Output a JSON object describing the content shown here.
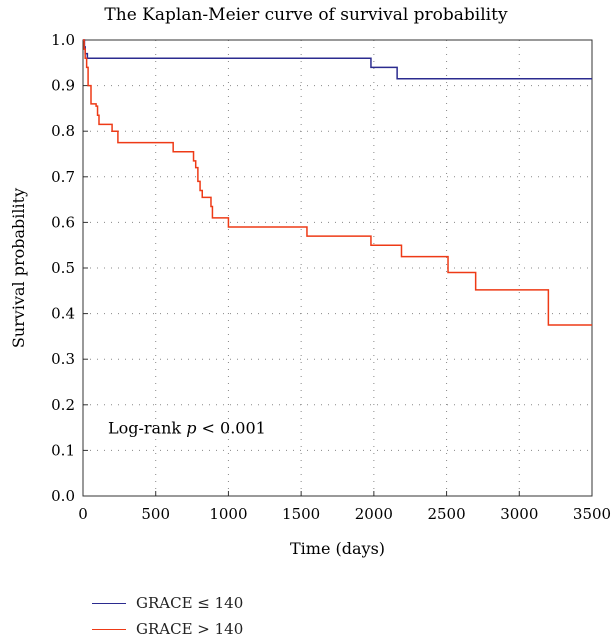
{
  "chart_data": {
    "type": "line",
    "step": true,
    "title": "The Kaplan-Meier curve of survival probability",
    "xlabel": "Time (days)",
    "ylabel": "Survival probability",
    "xlim": [
      0,
      3500
    ],
    "ylim": [
      0,
      1.0
    ],
    "x_ticks": [
      0,
      500,
      1000,
      1500,
      2000,
      2500,
      3000,
      3500
    ],
    "x_tick_labels": [
      "0",
      "500",
      "1000",
      "1500",
      "2000",
      "2500",
      "3000",
      "3500"
    ],
    "y_ticks": [
      0,
      0.1,
      0.2,
      0.3,
      0.4,
      0.5,
      0.6,
      0.7,
      0.8,
      0.9,
      1.0
    ],
    "y_tick_labels": [
      "0.0",
      "0.1",
      "0.2",
      "0.3",
      "0.4",
      "0.5",
      "0.6",
      "0.7",
      "0.8",
      "0.9",
      "1.0"
    ],
    "grid": true,
    "legend_position": "bottom-left",
    "annotation_prefix": "Log-rank ",
    "annotation_var": "p",
    "annotation_suffix": " < 0.001",
    "series": [
      {
        "name": "GRACE ≤ 140",
        "color": "#2b2b8f",
        "points": [
          [
            0,
            1.0
          ],
          [
            10,
            0.985
          ],
          [
            15,
            0.97
          ],
          [
            30,
            0.96
          ],
          [
            1970,
            0.96
          ],
          [
            1980,
            0.94
          ],
          [
            2150,
            0.94
          ],
          [
            2160,
            0.915
          ],
          [
            3500,
            0.915
          ]
        ]
      },
      {
        "name": "GRACE > 140",
        "color": "#ee3a16",
        "points": [
          [
            0,
            1.0
          ],
          [
            8,
            0.98
          ],
          [
            15,
            0.96
          ],
          [
            25,
            0.94
          ],
          [
            35,
            0.9
          ],
          [
            55,
            0.86
          ],
          [
            90,
            0.855
          ],
          [
            100,
            0.835
          ],
          [
            110,
            0.815
          ],
          [
            200,
            0.8
          ],
          [
            240,
            0.775
          ],
          [
            620,
            0.755
          ],
          [
            760,
            0.735
          ],
          [
            775,
            0.72
          ],
          [
            790,
            0.69
          ],
          [
            805,
            0.67
          ],
          [
            820,
            0.655
          ],
          [
            880,
            0.635
          ],
          [
            890,
            0.61
          ],
          [
            1000,
            0.59
          ],
          [
            1540,
            0.57
          ],
          [
            1980,
            0.55
          ],
          [
            2190,
            0.525
          ],
          [
            2510,
            0.49
          ],
          [
            2700,
            0.452
          ],
          [
            3200,
            0.375
          ],
          [
            3500,
            0.375
          ]
        ]
      }
    ]
  }
}
